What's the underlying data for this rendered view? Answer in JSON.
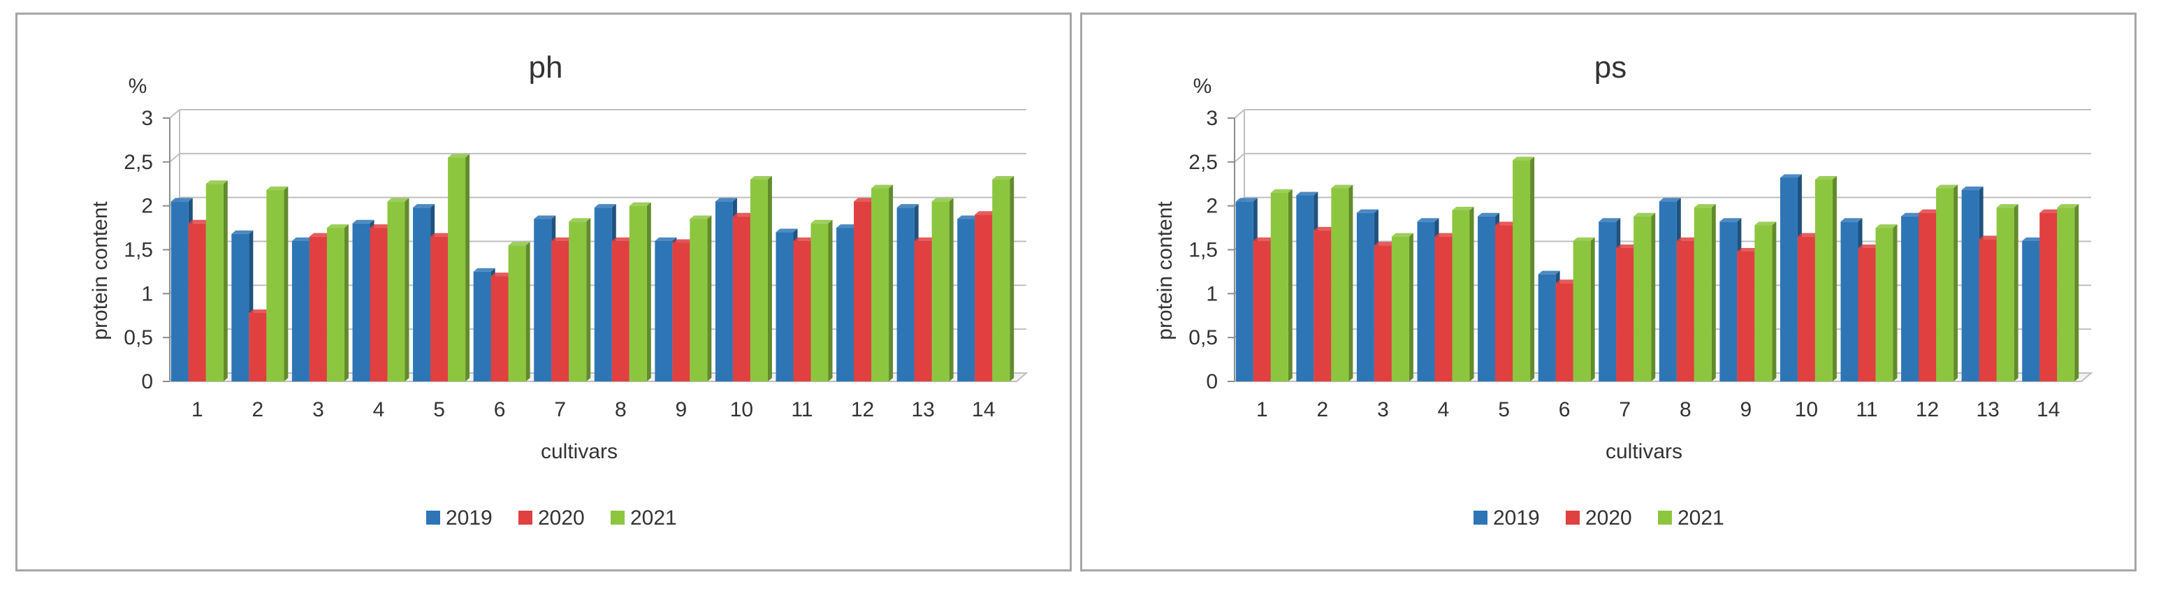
{
  "chart_data": [
    {
      "type": "bar",
      "title": "ph",
      "unit_label": "%",
      "ylabel": "protein content",
      "xlabel": "cultivars",
      "categories": [
        "1",
        "2",
        "3",
        "4",
        "5",
        "6",
        "7",
        "8",
        "9",
        "10",
        "11",
        "12",
        "13",
        "14"
      ],
      "ylim": [
        0,
        3
      ],
      "yticks": [
        "0",
        "0,5",
        "1",
        "1,5",
        "2",
        "2,5",
        "3"
      ],
      "ytick_values": [
        0,
        0.5,
        1,
        1.5,
        2,
        2.5,
        3
      ],
      "grid": true,
      "legend_position": "bottom",
      "series": [
        {
          "name": "2019",
          "color": "#2e75b6",
          "values": [
            2.05,
            1.68,
            1.6,
            1.8,
            1.98,
            1.25,
            1.85,
            1.98,
            1.6,
            2.05,
            1.7,
            1.75,
            1.98,
            1.85
          ]
        },
        {
          "name": "2020",
          "color": "#e04040",
          "values": [
            1.8,
            0.78,
            1.65,
            1.75,
            1.65,
            1.2,
            1.6,
            1.6,
            1.58,
            1.88,
            1.6,
            2.05,
            1.6,
            1.9
          ]
        },
        {
          "name": "2021",
          "color": "#8cc63f",
          "values": [
            2.25,
            2.18,
            1.75,
            2.05,
            2.55,
            1.55,
            1.82,
            2.0,
            1.85,
            2.3,
            1.8,
            2.2,
            2.05,
            2.3
          ]
        }
      ]
    },
    {
      "type": "bar",
      "title": "ps",
      "unit_label": "%",
      "ylabel": "protein content",
      "xlabel": "cultivars",
      "categories": [
        "1",
        "2",
        "3",
        "4",
        "5",
        "6",
        "7",
        "8",
        "9",
        "10",
        "11",
        "12",
        "13",
        "14"
      ],
      "ylim": [
        0,
        3
      ],
      "yticks": [
        "0",
        "0,5",
        "1",
        "1,5",
        "2",
        "2,5",
        "3"
      ],
      "ytick_values": [
        0,
        0.5,
        1,
        1.5,
        2,
        2.5,
        3
      ],
      "grid": true,
      "legend_position": "bottom",
      "series": [
        {
          "name": "2019",
          "color": "#2e75b6",
          "values": [
            2.05,
            2.12,
            1.92,
            1.82,
            1.88,
            1.22,
            1.82,
            2.05,
            1.82,
            2.32,
            1.82,
            1.88,
            2.18,
            1.6
          ]
        },
        {
          "name": "2020",
          "color": "#e04040",
          "values": [
            1.6,
            1.72,
            1.55,
            1.65,
            1.78,
            1.12,
            1.52,
            1.6,
            1.48,
            1.65,
            1.52,
            1.92,
            1.62,
            1.92
          ]
        },
        {
          "name": "2021",
          "color": "#8cc63f",
          "values": [
            2.15,
            2.2,
            1.65,
            1.95,
            2.52,
            1.6,
            1.88,
            1.98,
            1.78,
            2.3,
            1.75,
            2.2,
            1.98,
            1.98
          ]
        }
      ]
    }
  ]
}
